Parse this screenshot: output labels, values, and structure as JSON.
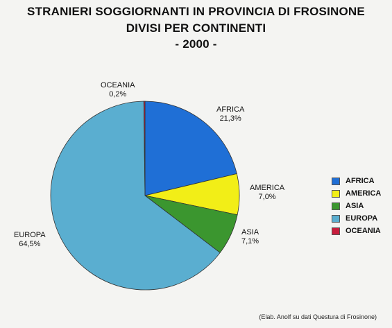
{
  "chart_data": {
    "type": "pie",
    "title": [
      "STRANIERI SOGGIORNANTI IN PROVINCIA DI FROSINONE",
      "DIVISI PER CONTINENTI",
      "- 2000 -"
    ],
    "slices": [
      {
        "label": "AFRICA",
        "value": 21.3,
        "value_label": "21,3%",
        "color": "#1f6fd6"
      },
      {
        "label": "AMERICA",
        "value": 7.0,
        "value_label": "7,0%",
        "color": "#f2ee17"
      },
      {
        "label": "ASIA",
        "value": 7.1,
        "value_label": "7,1%",
        "color": "#3b962f"
      },
      {
        "label": "EUROPA",
        "value": 64.5,
        "value_label": "64,5%",
        "color": "#5aaed0"
      },
      {
        "label": "OCEANIA",
        "value": 0.2,
        "value_label": "0,2%",
        "color": "#c81c3c"
      }
    ],
    "legend_position": "right"
  },
  "source_note": "(Elab. Anolf su dati Questura di Frosinone)"
}
